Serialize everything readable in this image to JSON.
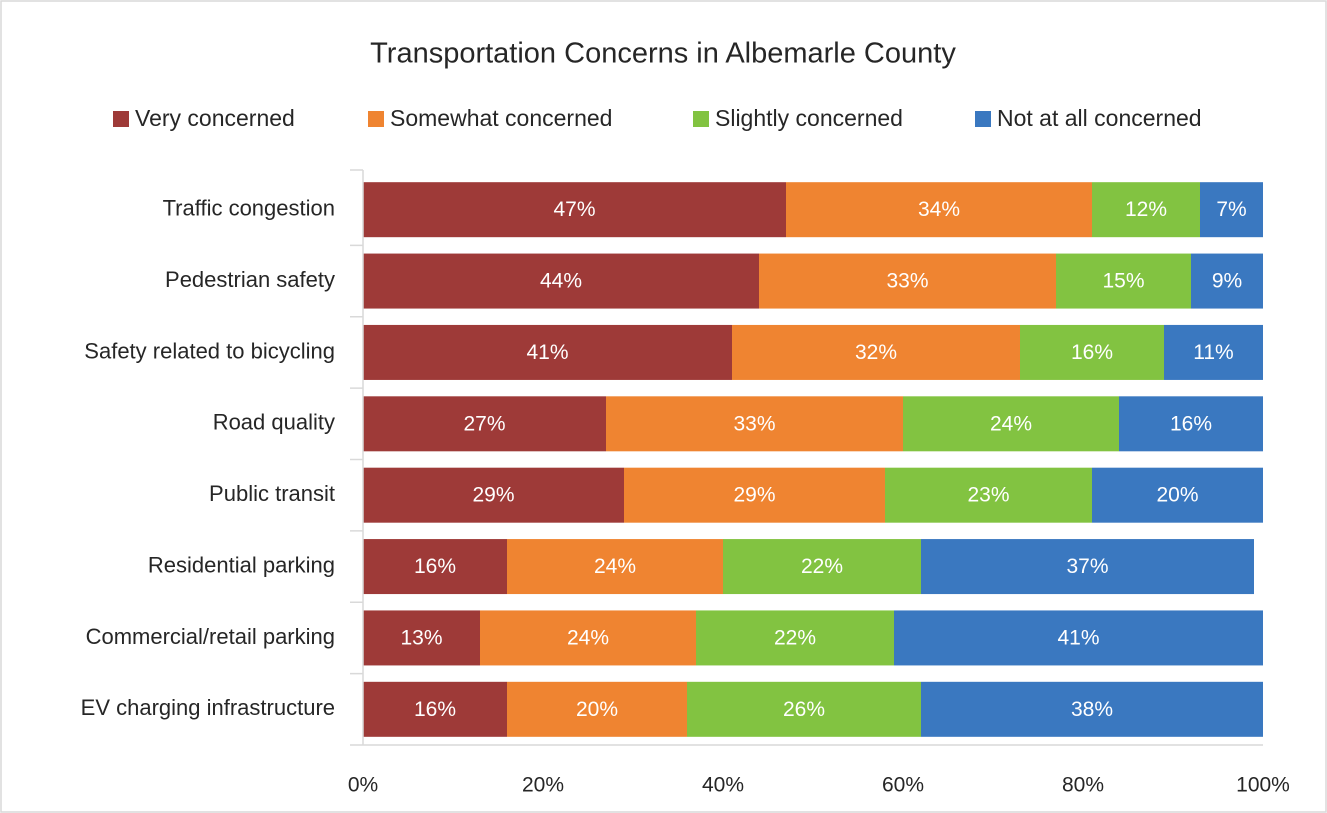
{
  "chart_data": {
    "type": "stacked-bar-horizontal",
    "title": "Transportation Concerns in Albemarle County",
    "categories": [
      "Traffic congestion",
      "Pedestrian safety",
      "Safety related to bicycling",
      "Road quality",
      "Public transit",
      "Residential parking",
      "Commercial/retail parking",
      "EV charging infrastructure"
    ],
    "series": [
      {
        "name": "Very concerned",
        "color": "#9e3a38",
        "values": [
          47,
          44,
          41,
          27,
          29,
          16,
          13,
          16
        ],
        "value_labels": [
          "47%",
          "44%",
          "41%",
          "27%",
          "29%",
          "16%",
          "13%",
          "16%"
        ]
      },
      {
        "name": "Somewhat concerned",
        "color": "#ef8431",
        "values": [
          34,
          33,
          32,
          33,
          29,
          24,
          24,
          20
        ],
        "value_labels": [
          "34%",
          "33%",
          "32%",
          "33%",
          "29%",
          "24%",
          "24%",
          "20%"
        ]
      },
      {
        "name": "Slightly concerned",
        "color": "#82c341",
        "values": [
          12,
          15,
          16,
          24,
          23,
          22,
          22,
          26
        ],
        "value_labels": [
          "12%",
          "15%",
          "16%",
          "24%",
          "23%",
          "22%",
          "22%",
          "26%"
        ]
      },
      {
        "name": "Not at all concerned",
        "color": "#3a78c0",
        "values": [
          7,
          9,
          11,
          16,
          20,
          37,
          41,
          38
        ],
        "value_labels": [
          "7%",
          "9%",
          "11%",
          "16%",
          "20%",
          "37%",
          "41%",
          "38%"
        ]
      }
    ],
    "xlim": [
      0,
      100
    ],
    "xticks": [
      {
        "value": 0,
        "label": "0%"
      },
      {
        "value": 20,
        "label": "20%"
      },
      {
        "value": 40,
        "label": "40%"
      },
      {
        "value": 60,
        "label": "60%"
      },
      {
        "value": 80,
        "label": "80%"
      },
      {
        "value": 100,
        "label": "100%"
      }
    ],
    "legend": "top"
  }
}
